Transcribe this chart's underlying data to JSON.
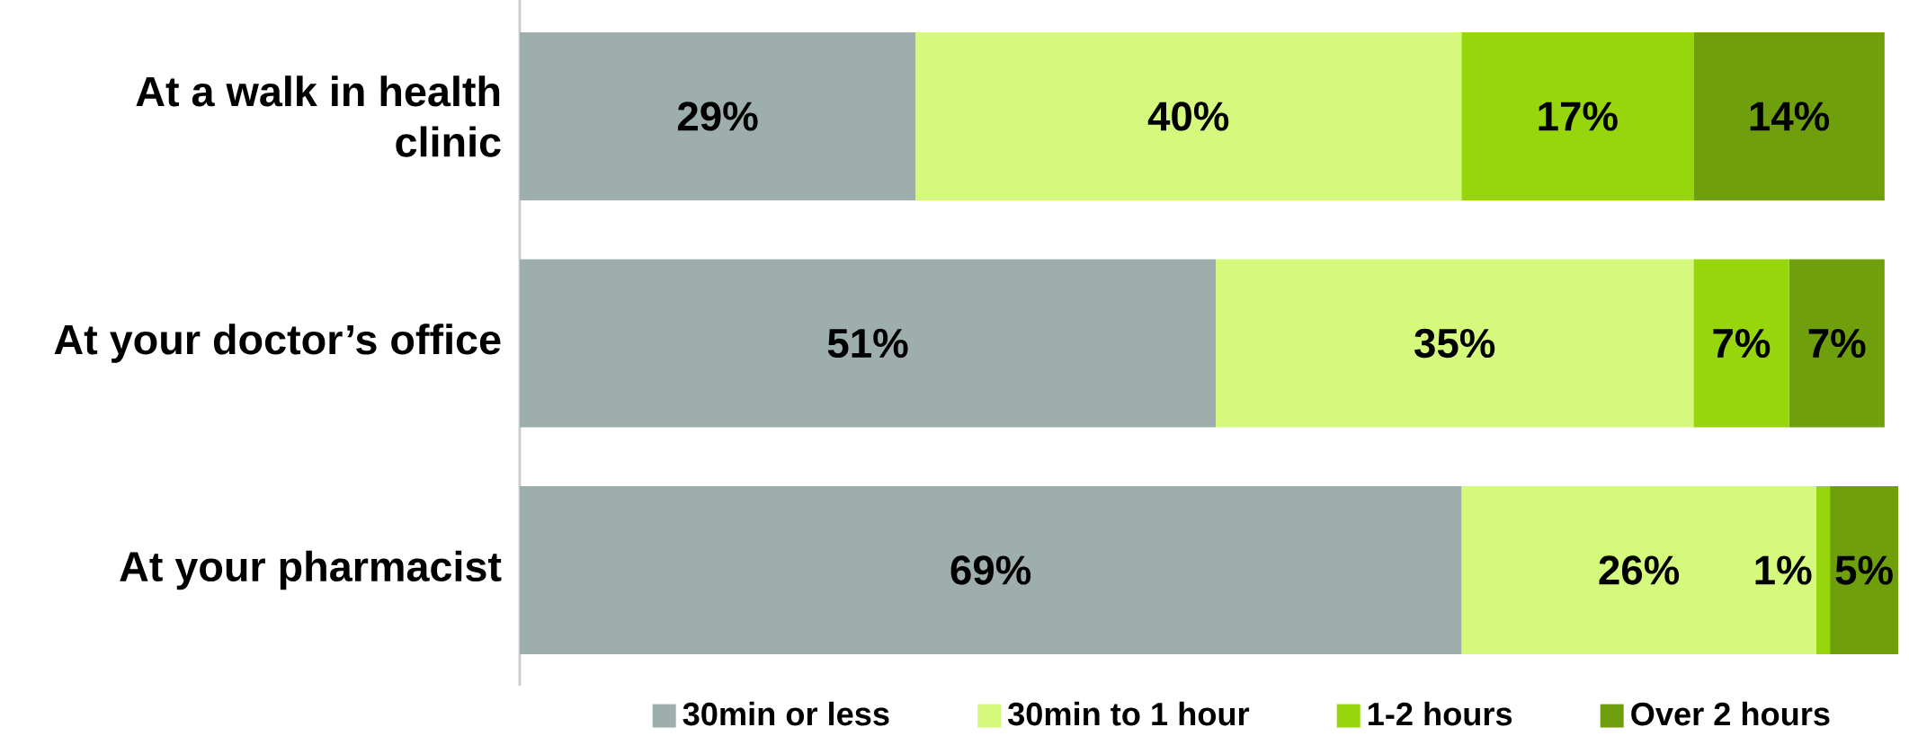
{
  "chart_data": {
    "type": "bar",
    "orientation": "horizontal",
    "stacked": true,
    "tick_labels": "y",
    "legend": "bottom",
    "categories": [
      "At a walk in health clinic",
      "At your doctor’s office",
      "At your pharmacist"
    ],
    "series": [
      {
        "name": "30min or less",
        "color": "#9daeac",
        "values": [
          29,
          51,
          69
        ],
        "value_labels": [
          "29%",
          "51%",
          "69%"
        ]
      },
      {
        "name": "30min to 1 hour",
        "color": "#d5f97c",
        "values": [
          40,
          35,
          26
        ],
        "value_labels": [
          "40%",
          "35%",
          "26%"
        ]
      },
      {
        "name": "1-2 hours",
        "color": "#97d50c",
        "values": [
          17,
          7,
          1
        ],
        "value_labels": [
          "17%",
          "7%",
          "1%"
        ]
      },
      {
        "name": "Over 2 hours",
        "color": "#6f9f0c",
        "values": [
          14,
          7,
          5
        ],
        "value_labels": [
          "14%",
          "7%",
          "5%"
        ]
      }
    ]
  }
}
